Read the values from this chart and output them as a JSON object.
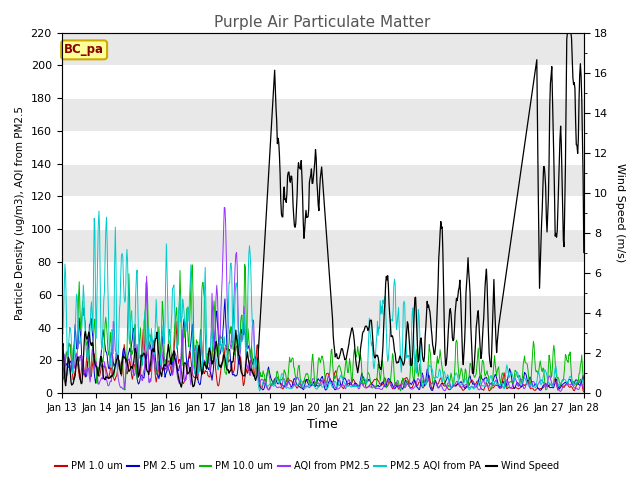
{
  "title": "Purple Air Particulate Matter",
  "xlabel": "Time",
  "ylabel_left": "Particle Density (ug/m3), AQI from PM2.5",
  "ylabel_right": "Wind Speed (m/s)",
  "ylim_left": [
    0,
    220
  ],
  "ylim_right": [
    0,
    18
  ],
  "annotation_text": "BC_pa",
  "annotation_color": "#8B0000",
  "annotation_bg": "#FFFF99",
  "annotation_edge": "#CCAA00",
  "x_ticks": [
    "Jan 13",
    "Jan 14",
    "Jan 15",
    "Jan 16",
    "Jan 17",
    "Jan 18",
    "Jan 19",
    "Jan 20",
    "Jan 21",
    "Jan 22",
    "Jan 23",
    "Jan 24",
    "Jan 25",
    "Jan 26",
    "Jan 27",
    "Jan 28"
  ],
  "series_colors": {
    "PM 1.0 um": "#CC0000",
    "PM 2.5 um": "#0000CC",
    "PM 10.0 um": "#00BB00",
    "AQI from PM2.5": "#9933FF",
    "PM2.5 AQI from PA": "#00CCCC",
    "Wind Speed": "#000000"
  },
  "fig_bg": "#ffffff",
  "plot_bg": "#ffffff",
  "band_color": "#e8e8e8",
  "title_fontsize": 11,
  "title_color": "#555555",
  "yticks_left": [
    0,
    20,
    40,
    60,
    80,
    100,
    120,
    140,
    160,
    180,
    200,
    220
  ],
  "yticks_right": [
    0,
    2,
    4,
    6,
    8,
    10,
    12,
    14,
    16,
    18
  ]
}
